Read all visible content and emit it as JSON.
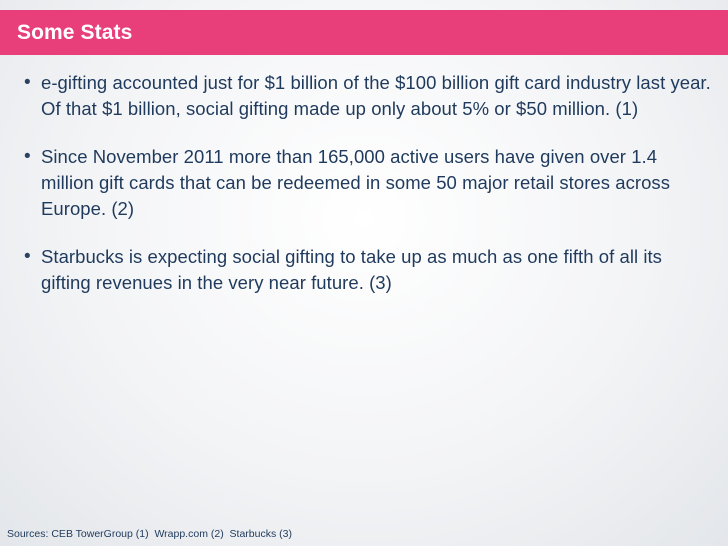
{
  "slide": {
    "title": "Some Stats",
    "accent_color": "#e83f7b",
    "text_color": "#1f3a5c",
    "bullet_glyph": "•",
    "bullets": [
      {
        "text": "e-gifting accounted just for $1 billion of the $100 billion gift card industry last year. Of that $1 billion, social gifting made up only about 5% or $50 million. (1)"
      },
      {
        "text": "Since November 2011 more than 165,000 active users have given over 1.4 million gift cards that can be redeemed in some 50 major retail stores across Europe. (2)"
      },
      {
        "text": "Starbucks is expecting social gifting to take up as much as one fifth of all its gifting revenues in the very near future. (3)"
      }
    ],
    "footer": "Sources: CEB TowerGroup (1)  Wrapp.com (2)  Starbucks (3)"
  }
}
